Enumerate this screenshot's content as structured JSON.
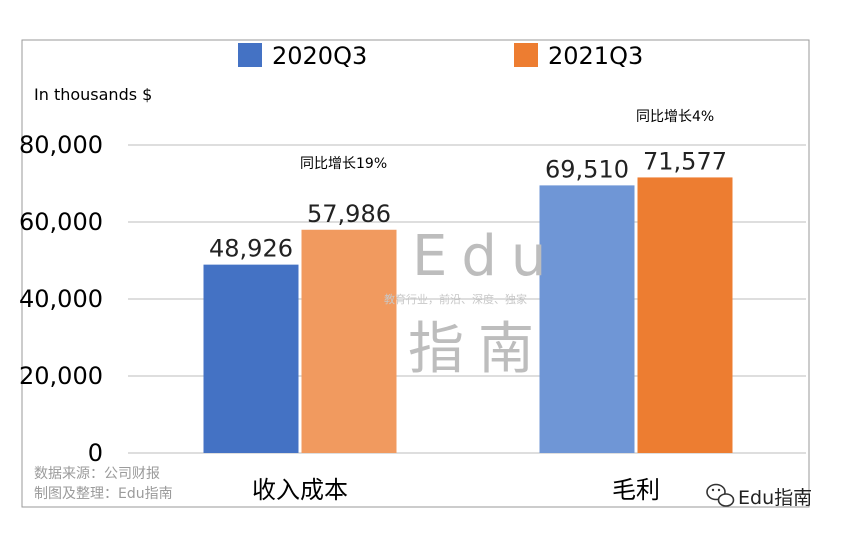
{
  "chart_data": {
    "type": "bar",
    "categories": [
      "收入成本",
      "毛利"
    ],
    "series": [
      {
        "name": "2020Q3",
        "values": [
          48926,
          69510
        ],
        "colors": [
          "#4472C4",
          "#6F96D6"
        ]
      },
      {
        "name": "2021Q3",
        "values": [
          57986,
          71577
        ],
        "colors": [
          "#F19A5F",
          "#ED7D31"
        ]
      }
    ],
    "value_labels": [
      [
        "48,926",
        "69,510"
      ],
      [
        "57,986",
        "71,577"
      ]
    ],
    "ylabel": "In thousands $",
    "yticks": [
      "0",
      "20,000",
      "40,000",
      "60,000",
      "80,000"
    ],
    "ylim": [
      0,
      80000
    ],
    "grid": true,
    "legend": "top",
    "annotations": [
      "同比增长19%",
      "同比增长4%"
    ]
  },
  "source": {
    "line1": "数据来源：公司财报",
    "line2": "制图及整理：Edu指南"
  },
  "watermark": {
    "title": "Edu",
    "subtitle": "教育行业，前沿、深度、独家",
    "name": "指南"
  },
  "brand": {
    "icon": "wechat-icon",
    "label": "Edu指南"
  }
}
